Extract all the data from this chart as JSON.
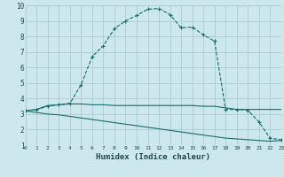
{
  "xlabel": "Humidex (Indice chaleur)",
  "bg_color": "#cce8ec",
  "grid_color": "#aaccd4",
  "line_color": "#1a6b6b",
  "line1_x": [
    0,
    1,
    2,
    3,
    4,
    5,
    6,
    7,
    8,
    9,
    10,
    11,
    12,
    13,
    14,
    15,
    16,
    17,
    18,
    19,
    20,
    21,
    22,
    23
  ],
  "line1_y": [
    3.2,
    3.3,
    3.5,
    3.6,
    3.7,
    4.9,
    6.7,
    7.4,
    8.5,
    9.0,
    9.35,
    9.75,
    9.8,
    9.4,
    8.55,
    8.6,
    8.1,
    7.7,
    3.3,
    3.3,
    3.25,
    2.5,
    1.45,
    1.35
  ],
  "line2_x": [
    0,
    1,
    2,
    3,
    4,
    5,
    6,
    7,
    8,
    9,
    10,
    11,
    12,
    13,
    14,
    15,
    16,
    17,
    18,
    19,
    20,
    21,
    22,
    23
  ],
  "line2_y": [
    3.2,
    3.1,
    3.0,
    2.95,
    2.85,
    2.75,
    2.65,
    2.55,
    2.45,
    2.35,
    2.25,
    2.15,
    2.05,
    1.95,
    1.85,
    1.75,
    1.65,
    1.55,
    1.45,
    1.4,
    1.35,
    1.3,
    1.25,
    1.3
  ],
  "line3_x": [
    0,
    1,
    2,
    3,
    4,
    5,
    6,
    7,
    8,
    9,
    10,
    11,
    12,
    13,
    14,
    15,
    16,
    17,
    18,
    19,
    20,
    21,
    22,
    23
  ],
  "line3_y": [
    3.2,
    3.3,
    3.55,
    3.6,
    3.65,
    3.65,
    3.6,
    3.6,
    3.55,
    3.55,
    3.55,
    3.55,
    3.55,
    3.55,
    3.55,
    3.55,
    3.5,
    3.5,
    3.4,
    3.3,
    3.3,
    3.3,
    3.3,
    3.3
  ],
  "ylim": [
    1,
    10
  ],
  "xlim": [
    0,
    23
  ],
  "yticks": [
    1,
    2,
    3,
    4,
    5,
    6,
    7,
    8,
    9,
    10
  ],
  "xticks": [
    0,
    1,
    2,
    3,
    4,
    5,
    6,
    7,
    8,
    9,
    10,
    11,
    12,
    13,
    14,
    15,
    16,
    17,
    18,
    19,
    20,
    21,
    22,
    23
  ]
}
